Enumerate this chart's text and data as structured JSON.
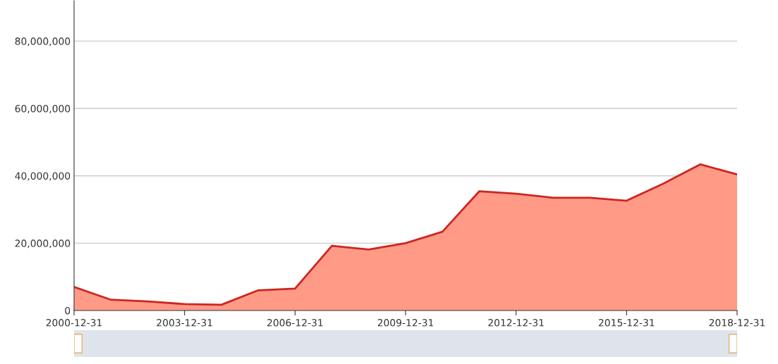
{
  "chart_data": {
    "type": "area",
    "categories": [
      "2000-12-31",
      null,
      null,
      "2003-12-31",
      null,
      null,
      "2006-12-31",
      null,
      null,
      "2009-12-31",
      null,
      null,
      "2012-12-31",
      null,
      null,
      "2015-12-31",
      null,
      null,
      "2018-12-31"
    ],
    "series": [
      {
        "color": "#ff9a86",
        "values": [
          7000000,
          3200000,
          2700000,
          1900000,
          1700000,
          6000000,
          6500000,
          19200000,
          18100000,
          20000000,
          23400000,
          35400000,
          34700000,
          33500000,
          33500000,
          32600000,
          37700000,
          43400000,
          40400000
        ]
      }
    ],
    "ylim": [
      0,
      92000000
    ],
    "yticks": [
      {
        "value": 0,
        "label": "0"
      },
      {
        "value": 20000000,
        "label": "20,000,000"
      },
      {
        "value": 40000000,
        "label": "40,000,000"
      },
      {
        "value": 60000000,
        "label": "60,000,000"
      },
      {
        "value": 80000000,
        "label": "80,000,000"
      }
    ],
    "grid": "y"
  }
}
